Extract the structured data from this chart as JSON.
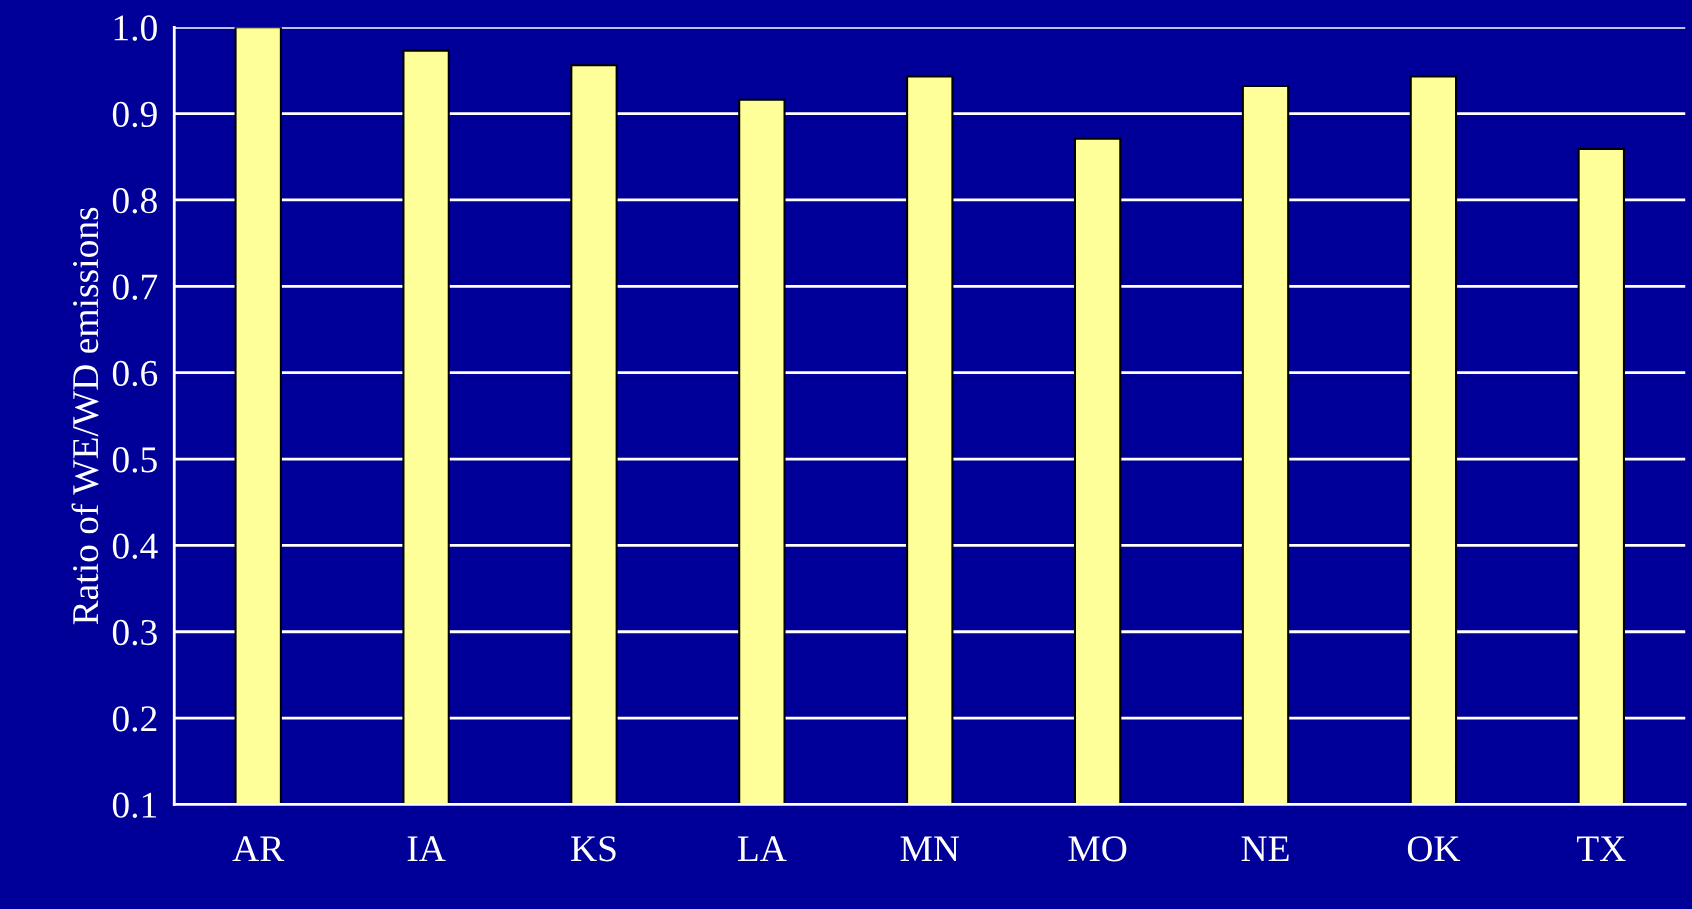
{
  "chart_data": {
    "type": "bar",
    "categories": [
      "AR",
      "IA",
      "KS",
      "LA",
      "MN",
      "MO",
      "NE",
      "OK",
      "TX"
    ],
    "values": [
      1.0,
      0.973,
      0.956,
      0.916,
      0.943,
      0.871,
      0.932,
      0.943,
      0.859
    ],
    "color": "#ffff99",
    "ylabel": "Ratio of WE/WD emissions",
    "ylim": [
      0.1,
      1.0
    ],
    "yticks": [
      {
        "value": 0.1,
        "label": "0.1"
      },
      {
        "value": 0.2,
        "label": "0.2"
      },
      {
        "value": 0.3,
        "label": "0.3"
      },
      {
        "value": 0.4,
        "label": "0.4"
      },
      {
        "value": 0.5,
        "label": "0.5"
      },
      {
        "value": 0.6,
        "label": "0.6"
      },
      {
        "value": 0.7,
        "label": "0.7"
      },
      {
        "value": 0.8,
        "label": "0.8"
      },
      {
        "value": 0.9,
        "label": "0.9"
      },
      {
        "value": 1.0,
        "label": "1.0"
      }
    ],
    "grid": "y",
    "legend": false
  }
}
